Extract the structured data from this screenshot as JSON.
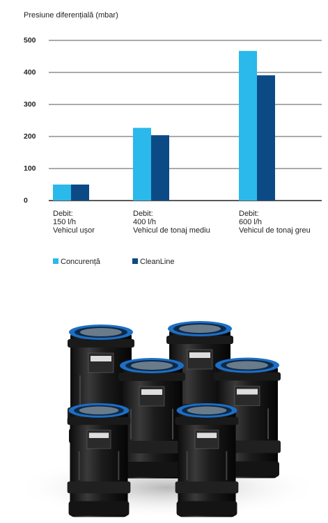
{
  "chart_data": {
    "type": "bar",
    "title": "Presiune diferențială (mbar)",
    "categories": [
      [
        "Debit:",
        "150 l/h",
        "Vehicul ușor"
      ],
      [
        "Debit:",
        "400 l/h",
        "Vehicul de tonaj mediu"
      ],
      [
        "Debit:",
        "600 l/h",
        "Vehicul de tonaj greu"
      ]
    ],
    "series": [
      {
        "name": "Concurență",
        "color": "#2bb8ea",
        "values": [
          50,
          227,
          467
        ]
      },
      {
        "name": "CleanLine",
        "color": "#0c4a86",
        "values": [
          50,
          204,
          391
        ]
      }
    ],
    "ylim": [
      0,
      500
    ],
    "yticks": [
      0,
      100,
      200,
      300,
      400,
      500
    ],
    "grid": true
  }
}
